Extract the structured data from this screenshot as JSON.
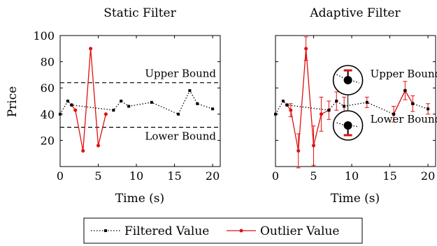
{
  "chart_data": [
    {
      "type": "line",
      "title": "Static Filter",
      "xlabel": "Time (s)",
      "ylabel": "Price",
      "xlim": [
        0,
        21
      ],
      "ylim": [
        0,
        100
      ],
      "xticks": [
        0,
        5,
        10,
        15,
        20
      ],
      "yticks": [
        20,
        40,
        60,
        80,
        100
      ],
      "grid": false,
      "series": [
        {
          "name": "Filtered Value",
          "style": "dotted",
          "color": "#000000",
          "x": [
            0,
            1,
            1.5,
            7,
            8,
            9,
            12,
            15.5,
            17,
            18,
            20
          ],
          "y": [
            40,
            50,
            47,
            43,
            50,
            46,
            49,
            40,
            58,
            48,
            44
          ]
        },
        {
          "name": "Outlier Value",
          "style": "solid",
          "color": "#e01010",
          "segments": [
            {
              "x": [
                1.5,
                2,
                3,
                4,
                5,
                6
              ],
              "y": [
                47,
                43,
                12,
                90,
                16,
                40
              ]
            }
          ]
        }
      ],
      "annotations": [
        {
          "type": "hline",
          "y": 64,
          "style": "dashed",
          "label": "Upper Bound"
        },
        {
          "type": "hline",
          "y": 30,
          "style": "dashed",
          "label": "Lower Bound"
        }
      ]
    },
    {
      "type": "line",
      "title": "Adaptive Filter",
      "xlabel": "Time (s)",
      "xlim": [
        0,
        21
      ],
      "ylim": [
        0,
        100
      ],
      "xticks": [
        0,
        5,
        10,
        15,
        20
      ],
      "yticks": [
        20,
        40,
        60,
        80,
        100
      ],
      "grid": false,
      "series": [
        {
          "name": "Filtered Value",
          "style": "dotted",
          "color": "#000000",
          "x": [
            0,
            1,
            1.5,
            7,
            8,
            9,
            12,
            15.5,
            17,
            18,
            20
          ],
          "y": [
            40,
            50,
            47,
            43,
            50,
            46,
            49,
            40,
            58,
            48,
            44
          ],
          "errors": [
            null,
            null,
            null,
            7,
            7,
            7,
            4,
            6,
            7,
            6,
            4
          ]
        },
        {
          "name": "Outlier Value",
          "style": "solid",
          "color": "#e01010",
          "segments": [
            {
              "x": [
                1.5,
                2,
                3,
                4,
                5,
                6,
                7
              ],
              "y": [
                47,
                43,
                12,
                90,
                16,
                40,
                43
              ],
              "errors": [
                null,
                5,
                13,
                9,
                15,
                13,
                null
              ]
            },
            {
              "x": [
                15.5,
                17,
                18
              ],
              "y": [
                40,
                58,
                48
              ]
            }
          ]
        }
      ],
      "annotations": [
        {
          "type": "zoom-callout",
          "x": 9.5,
          "y": 46,
          "label": "Upper Bound"
        },
        {
          "type": "zoom-callout",
          "x": 9.5,
          "y": 46,
          "label": "Lower Bound"
        }
      ]
    }
  ],
  "legend": {
    "placement": "bottom-center",
    "items": [
      "Filtered Value",
      "Outlier Value"
    ]
  }
}
